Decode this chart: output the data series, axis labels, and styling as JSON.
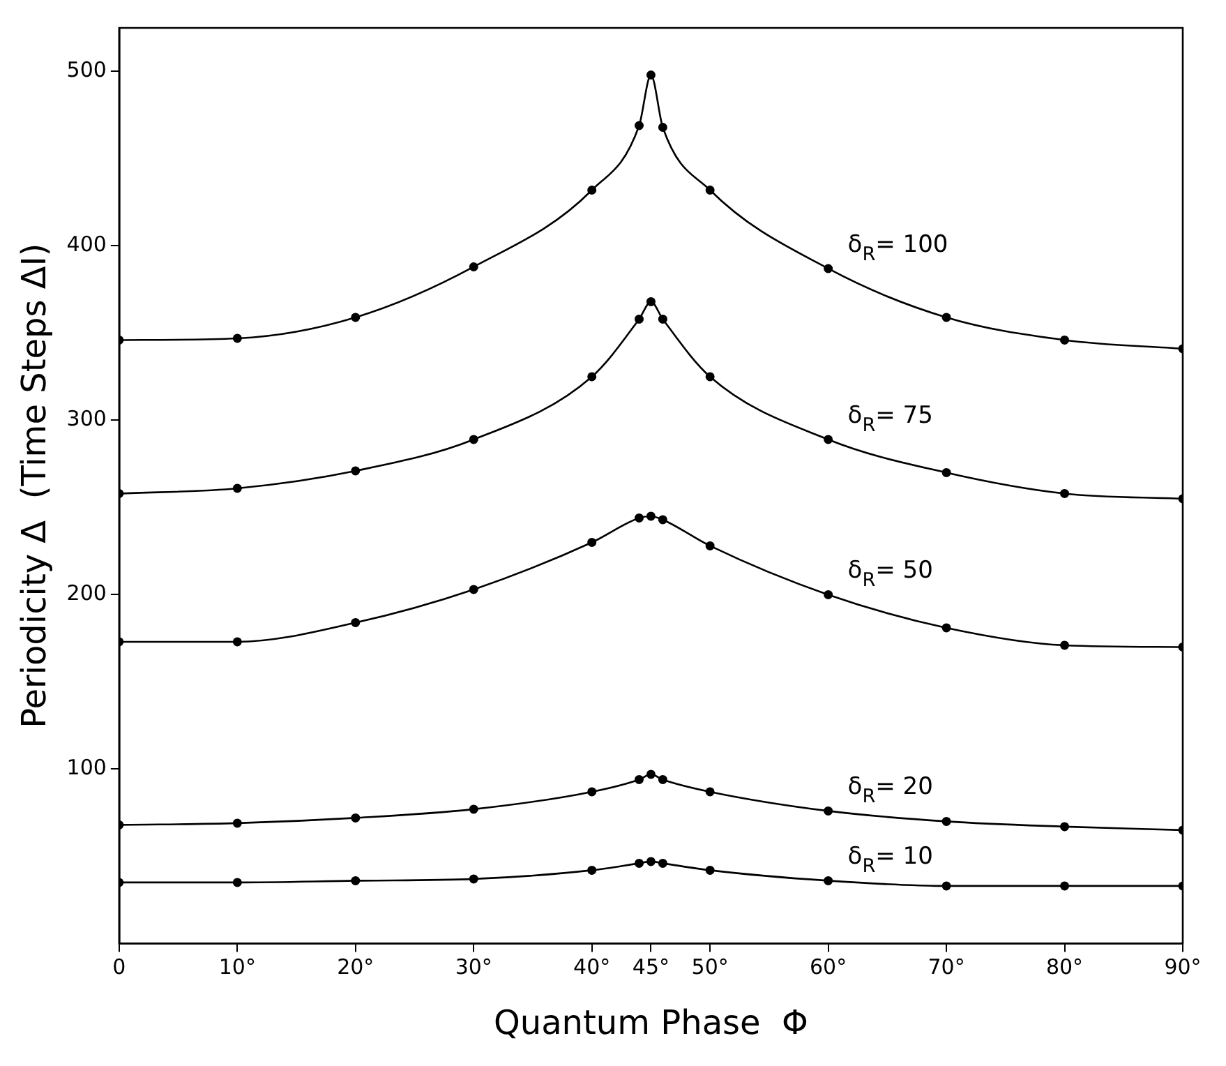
{
  "chart_data": {
    "type": "line",
    "xlabel": "Quantum Phase  Φ",
    "ylabel": "Periodicity Δ  (Time Steps ΔI)",
    "x": [
      0,
      10,
      20,
      30,
      40,
      44,
      45,
      46,
      50,
      60,
      70,
      80,
      90
    ],
    "series": [
      {
        "name": "δ$_{R}$= 100",
        "color": "#000000",
        "values": [
          346,
          347,
          359,
          388,
          432,
          469,
          498,
          468,
          432,
          387,
          359,
          346,
          341
        ]
      },
      {
        "name": "δ$_{R}$= 75",
        "color": "#000000",
        "values": [
          258,
          261,
          271,
          289,
          325,
          358,
          368,
          358,
          325,
          289,
          270,
          258,
          255
        ]
      },
      {
        "name": "δ$_{R}$= 50",
        "color": "#000000",
        "values": [
          173,
          173,
          184,
          203,
          230,
          244,
          245,
          243,
          228,
          200,
          181,
          171,
          170
        ]
      },
      {
        "name": "δ$_{R}$= 20",
        "color": "#000000",
        "values": [
          68,
          69,
          72,
          77,
          87,
          94,
          97,
          94,
          87,
          76,
          70,
          67,
          65
        ]
      },
      {
        "name": "δ$_{R}$= 10",
        "color": "#000000",
        "values": [
          35,
          35,
          36,
          37,
          42,
          46,
          47,
          46,
          42,
          36,
          33,
          33,
          33
        ]
      }
    ],
    "xlim": [
      0,
      90
    ],
    "xticks": [
      0,
      {
        "value": 10,
        "label": "10°"
      },
      {
        "value": 20,
        "label": "20°"
      },
      {
        "value": 30,
        "label": "30°"
      },
      {
        "value": 40,
        "label": "40°"
      },
      {
        "value": 45,
        "label": "45°"
      },
      {
        "value": 50,
        "label": "50°"
      },
      {
        "value": 60,
        "label": "60°"
      },
      {
        "value": 70,
        "label": "70°"
      },
      {
        "value": 80,
        "label": "80°"
      },
      {
        "value": 90,
        "label": "90°"
      }
    ],
    "ylim": [
      0,
      525
    ],
    "yticks": [
      100,
      200,
      300,
      400,
      500
    ],
    "grid": false,
    "legend": false,
    "marker": "circle",
    "line_style": "solid"
  }
}
